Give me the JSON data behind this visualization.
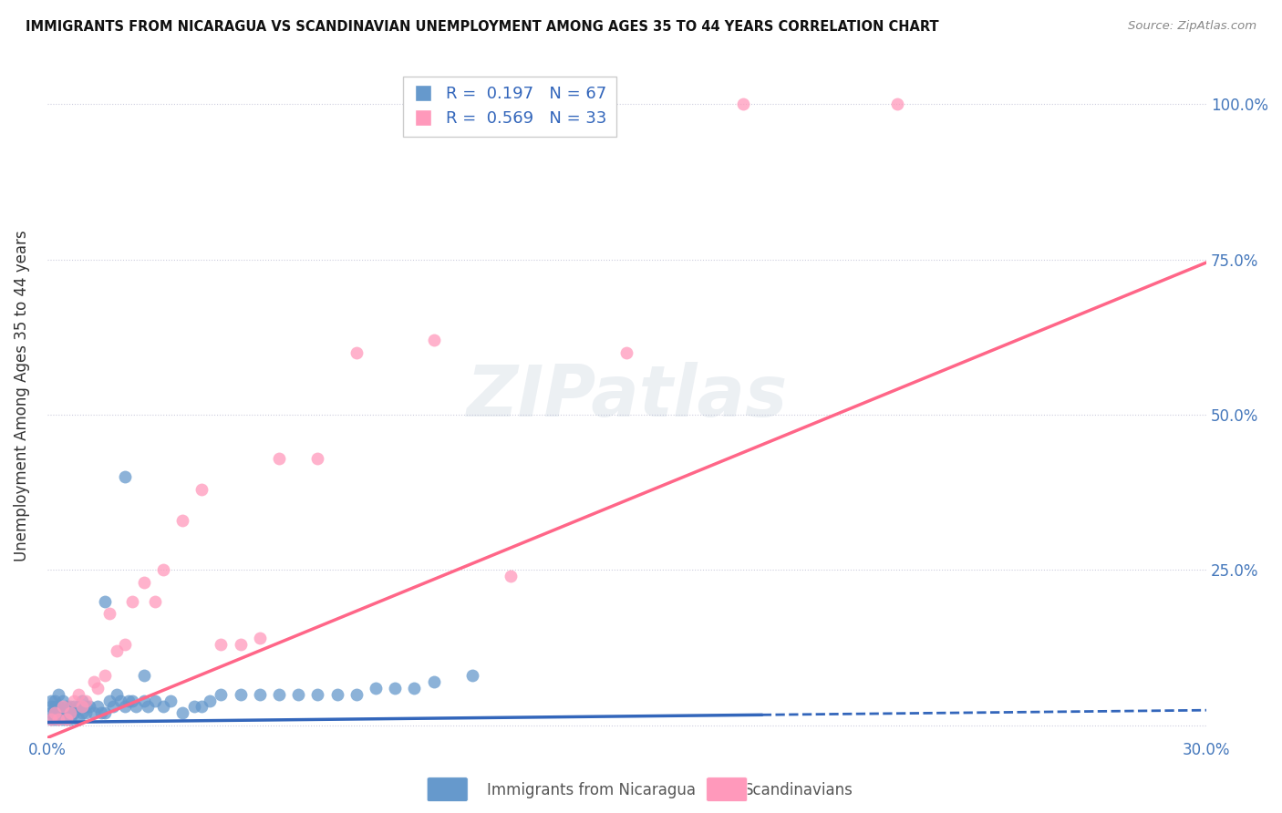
{
  "title": "IMMIGRANTS FROM NICARAGUA VS SCANDINAVIAN UNEMPLOYMENT AMONG AGES 35 TO 44 YEARS CORRELATION CHART",
  "source": "Source: ZipAtlas.com",
  "ylabel": "Unemployment Among Ages 35 to 44 years",
  "xlim": [
    0.0,
    0.3
  ],
  "ylim": [
    -0.02,
    1.08
  ],
  "yticks": [
    0.0,
    0.25,
    0.5,
    0.75,
    1.0
  ],
  "ytick_labels_left": [
    "",
    "",
    "",
    "",
    ""
  ],
  "ytick_labels_right": [
    "",
    "25.0%",
    "50.0%",
    "75.0%",
    "100.0%"
  ],
  "xticks": [
    0.0,
    0.05,
    0.1,
    0.15,
    0.2,
    0.25,
    0.3
  ],
  "xtick_labels": [
    "0.0%",
    "",
    "",
    "",
    "",
    "",
    "30.0%"
  ],
  "r1_val": "0.197",
  "n1_val": "67",
  "r2_val": "0.569",
  "n2_val": "33",
  "color_blue": "#6699CC",
  "color_pink": "#FF99BB",
  "line_blue": "#3366BB",
  "line_pink": "#FF6688",
  "legend1_label": "Immigrants from Nicaragua",
  "legend2_label": "Scandinavians",
  "blue_line_x": [
    0.0,
    0.185,
    0.3
  ],
  "blue_line_y_intercept": 0.005,
  "blue_line_slope": 0.065,
  "pink_line_x": [
    0.0,
    0.3
  ],
  "pink_line_y_intercept": -0.02,
  "pink_line_slope": 2.55,
  "blue_scatter_x": [
    0.001,
    0.001,
    0.001,
    0.001,
    0.002,
    0.002,
    0.002,
    0.002,
    0.003,
    0.003,
    0.003,
    0.003,
    0.004,
    0.004,
    0.004,
    0.005,
    0.005,
    0.005,
    0.006,
    0.006,
    0.006,
    0.007,
    0.007,
    0.008,
    0.008,
    0.009,
    0.009,
    0.01,
    0.01,
    0.011,
    0.012,
    0.013,
    0.014,
    0.015,
    0.016,
    0.017,
    0.018,
    0.019,
    0.02,
    0.021,
    0.022,
    0.023,
    0.025,
    0.026,
    0.028,
    0.03,
    0.032,
    0.035,
    0.038,
    0.04,
    0.042,
    0.045,
    0.05,
    0.055,
    0.06,
    0.065,
    0.07,
    0.075,
    0.08,
    0.085,
    0.09,
    0.095,
    0.1,
    0.11,
    0.015,
    0.02,
    0.025
  ],
  "blue_scatter_y": [
    0.01,
    0.02,
    0.03,
    0.04,
    0.01,
    0.02,
    0.03,
    0.04,
    0.01,
    0.02,
    0.03,
    0.05,
    0.01,
    0.02,
    0.04,
    0.01,
    0.02,
    0.03,
    0.01,
    0.02,
    0.03,
    0.02,
    0.03,
    0.01,
    0.03,
    0.02,
    0.04,
    0.02,
    0.03,
    0.03,
    0.02,
    0.03,
    0.02,
    0.02,
    0.04,
    0.03,
    0.05,
    0.04,
    0.03,
    0.04,
    0.04,
    0.03,
    0.04,
    0.03,
    0.04,
    0.03,
    0.04,
    0.02,
    0.03,
    0.03,
    0.04,
    0.05,
    0.05,
    0.05,
    0.05,
    0.05,
    0.05,
    0.05,
    0.05,
    0.06,
    0.06,
    0.06,
    0.07,
    0.08,
    0.2,
    0.4,
    0.08
  ],
  "pink_scatter_x": [
    0.001,
    0.002,
    0.003,
    0.004,
    0.005,
    0.006,
    0.007,
    0.008,
    0.009,
    0.01,
    0.012,
    0.013,
    0.015,
    0.016,
    0.018,
    0.02,
    0.022,
    0.025,
    0.028,
    0.03,
    0.035,
    0.04,
    0.045,
    0.05,
    0.055,
    0.06,
    0.07,
    0.08,
    0.1,
    0.12,
    0.15,
    0.18,
    0.22
  ],
  "pink_scatter_y": [
    0.01,
    0.02,
    0.01,
    0.03,
    0.01,
    0.02,
    0.04,
    0.05,
    0.03,
    0.04,
    0.07,
    0.06,
    0.08,
    0.18,
    0.12,
    0.13,
    0.2,
    0.23,
    0.2,
    0.25,
    0.33,
    0.38,
    0.13,
    0.13,
    0.14,
    0.43,
    0.43,
    0.6,
    0.62,
    0.24,
    0.6,
    1.0,
    1.0
  ]
}
